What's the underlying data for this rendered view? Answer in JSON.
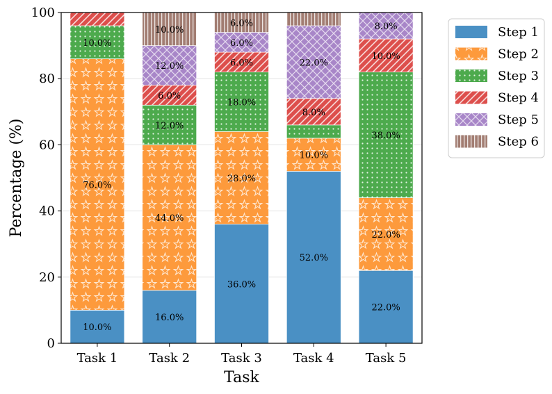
{
  "chart_data": {
    "type": "bar",
    "stacked": true,
    "title": "",
    "xlabel": "Task",
    "ylabel": "Percentage (%)",
    "ylim": [
      0,
      100
    ],
    "yticks": [
      "0",
      "20",
      "40",
      "60",
      "80",
      "100"
    ],
    "grid": "y",
    "legend_position": "outside-right",
    "categories": [
      "Task 1",
      "Task 2",
      "Task 3",
      "Task 4",
      "Task 5"
    ],
    "series": [
      {
        "name": "Step 1",
        "color": "#4a90c4",
        "pattern": "none",
        "values": [
          10,
          16,
          36,
          52,
          22
        ],
        "labels": [
          "10.0%",
          "16.0%",
          "36.0%",
          "52.0%",
          "22.0%"
        ]
      },
      {
        "name": "Step 2",
        "color": "#fd9a3c",
        "pattern": "stars",
        "values": [
          76,
          44,
          28,
          10,
          22
        ],
        "labels": [
          "76.0%",
          "44.0%",
          "28.0%",
          "10.0%",
          "22.0%"
        ]
      },
      {
        "name": "Step 3",
        "color": "#4daa4d",
        "pattern": "dots",
        "values": [
          10,
          12,
          18,
          4,
          38
        ],
        "labels": [
          "10.0%",
          "12.0%",
          "18.0%",
          "",
          "38.0%"
        ]
      },
      {
        "name": "Step 4",
        "color": "#dd4f4c",
        "pattern": "diag",
        "values": [
          4,
          6,
          6,
          8,
          10
        ],
        "labels": [
          "",
          "6.0%",
          "6.0%",
          "8.0%",
          "10.0%"
        ]
      },
      {
        "name": "Step 5",
        "color": "#a886c8",
        "pattern": "cross",
        "values": [
          0,
          12,
          6,
          22,
          8
        ],
        "labels": [
          "",
          "12.0%",
          "6.0%",
          "22.0%",
          "8.0%"
        ]
      },
      {
        "name": "Step 6",
        "color": "#a27d72",
        "pattern": "vlines",
        "values": [
          0,
          10,
          6,
          4,
          0
        ],
        "labels": [
          "",
          "10.0%",
          "6.0%",
          "",
          ""
        ]
      }
    ]
  }
}
